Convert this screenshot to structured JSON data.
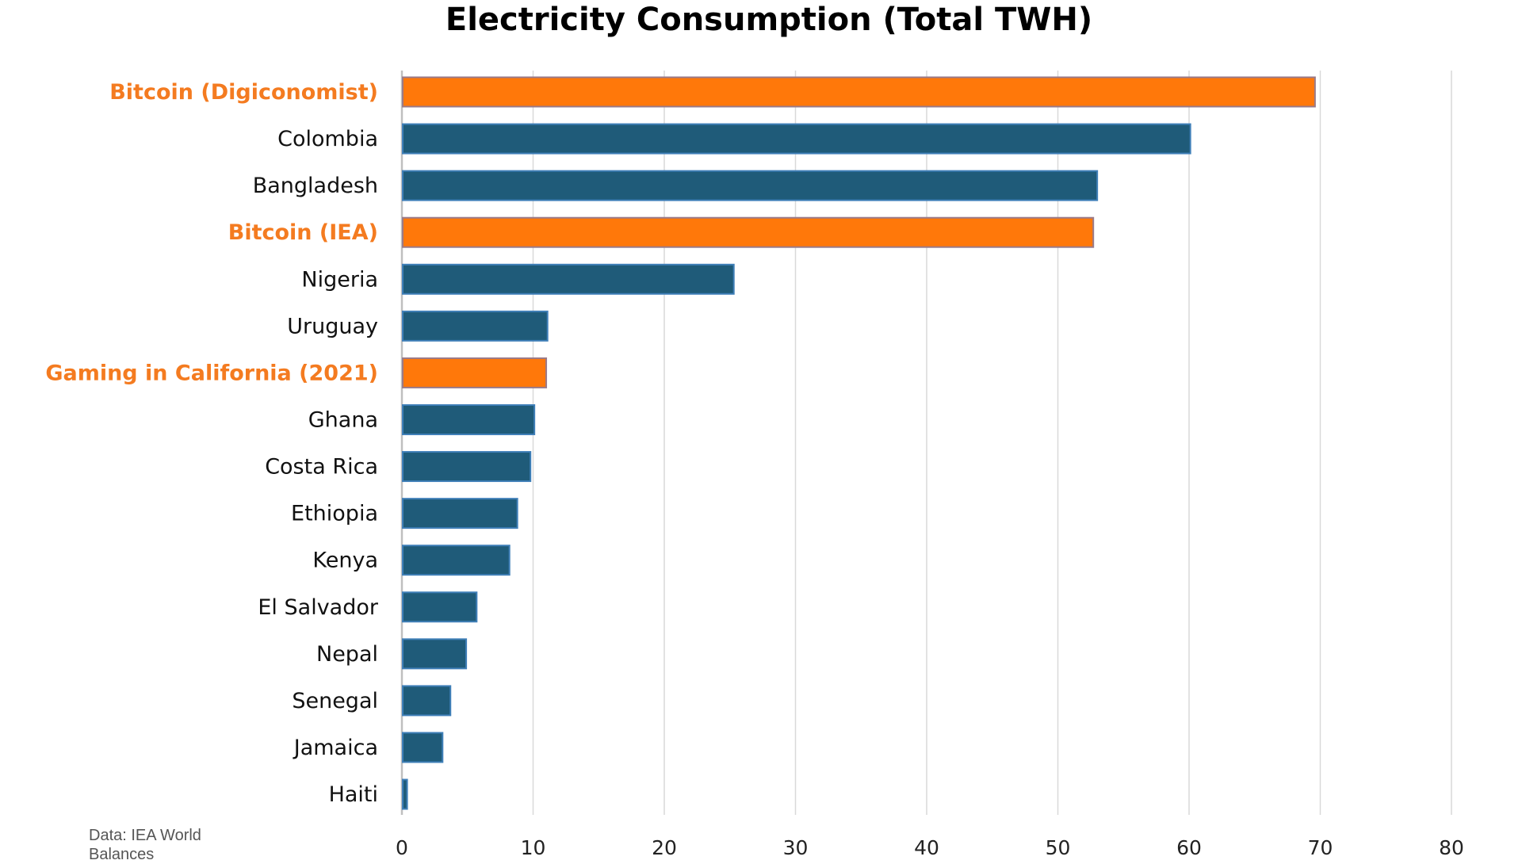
{
  "chart_data": {
    "type": "bar",
    "orientation": "horizontal",
    "title": "Electricity Consumption (Total TWH)",
    "categories": [
      "Bitcoin (Digiconomist)",
      "Colombia",
      "Bangladesh",
      "Bitcoin (IEA)",
      "Nigeria",
      "Uruguay",
      "Gaming in California (2021)",
      "Ghana",
      "Costa Rica",
      "Ethiopia",
      "Kenya",
      "El Salvador",
      "Nepal",
      "Senegal",
      "Jamaica",
      "Haiti"
    ],
    "values": [
      69.6,
      60.1,
      53.0,
      52.7,
      25.3,
      11.1,
      11.0,
      10.1,
      9.8,
      8.8,
      8.2,
      5.7,
      4.9,
      3.7,
      3.1,
      0.4
    ],
    "highlighted": [
      true,
      false,
      false,
      true,
      false,
      false,
      true,
      false,
      false,
      false,
      false,
      false,
      false,
      false,
      false,
      false
    ],
    "xlim": [
      0,
      80
    ],
    "xticks": [
      "0",
      "10",
      "20",
      "30",
      "40",
      "50",
      "60",
      "70",
      "80"
    ],
    "grid": true,
    "colors": {
      "bar": "#1F5B79",
      "highlight_bar": "#FF780A",
      "highlight_label": "#F47B20",
      "bar_border": "#3F7FB8",
      "highlight_border": "#9A7A88"
    }
  },
  "source_note": "Data: IEA World Balances"
}
